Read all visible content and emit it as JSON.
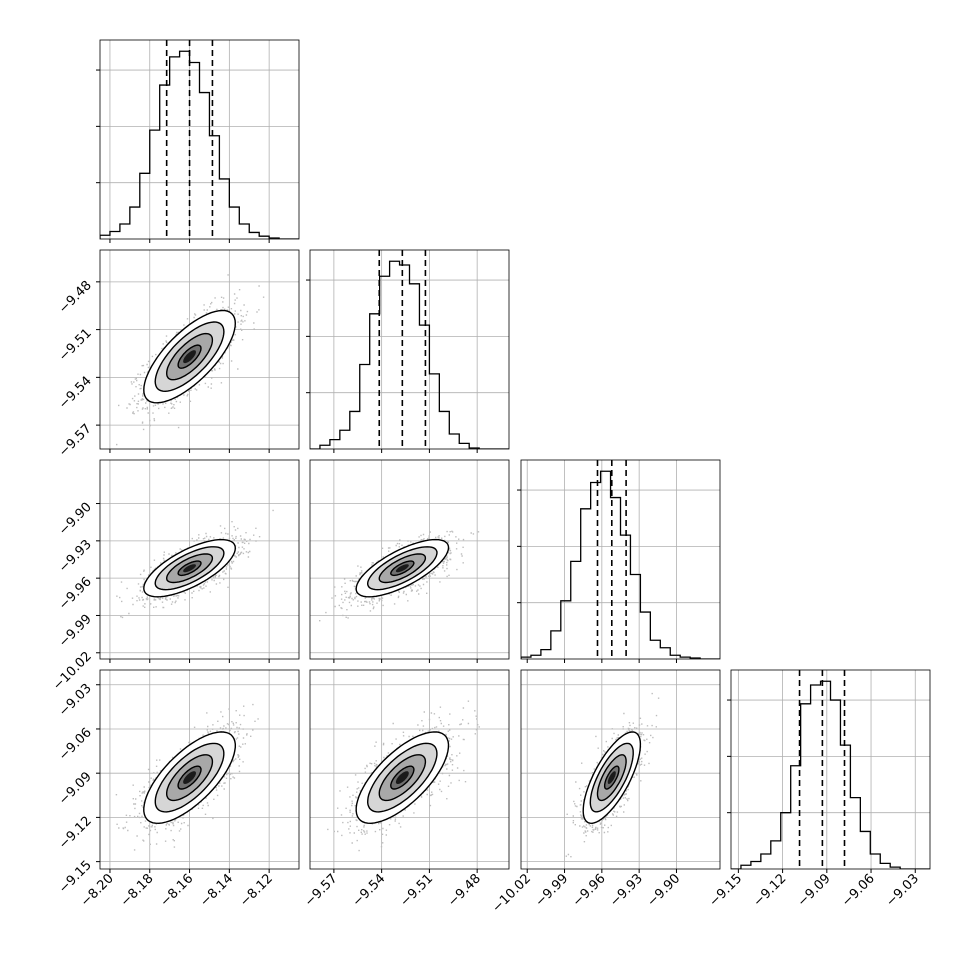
{
  "chart_data": {
    "type": "corner",
    "grid": true,
    "dims": [
      {
        "range": [
          -8.205,
          -8.105
        ],
        "ticks": [
          -8.2,
          -8.18,
          -8.16,
          -8.14,
          -8.12
        ],
        "tick_labels": [
          "−8.20",
          "−8.18",
          "−8.16",
          "−8.14",
          "−8.12"
        ],
        "quantiles": [
          -8.1715,
          -8.16,
          -8.1485
        ],
        "hist_values": [
          0.02,
          0.04,
          0.08,
          0.17,
          0.35,
          0.58,
          0.82,
          0.97,
          1.0,
          0.94,
          0.78,
          0.55,
          0.32,
          0.17,
          0.08,
          0.035,
          0.015,
          0.005,
          0.0,
          0.0
        ],
        "hist_yticks": [
          0.3,
          0.6,
          0.9
        ]
      },
      {
        "range": [
          -9.585,
          -9.46
        ],
        "ticks": [
          -9.57,
          -9.54,
          -9.51,
          -9.48
        ],
        "tick_labels": [
          "−9.57",
          "−9.54",
          "−9.51",
          "−9.48"
        ],
        "quantiles": [
          -9.5415,
          -9.527,
          -9.5125
        ],
        "hist_values": [
          0.0,
          0.02,
          0.05,
          0.1,
          0.2,
          0.45,
          0.72,
          0.92,
          1.0,
          0.98,
          0.88,
          0.66,
          0.4,
          0.2,
          0.08,
          0.03,
          0.005,
          0.0,
          0.0,
          0.0
        ],
        "hist_yticks": [
          0.3,
          0.6,
          0.9
        ]
      },
      {
        "range": [
          -10.025,
          -9.865
        ],
        "ticks": [
          -10.02,
          -9.99,
          -9.96,
          -9.93,
          -9.9
        ],
        "tick_labels": [
          "−10.02",
          "−9.99",
          "−9.96",
          "−9.93",
          "−9.90"
        ],
        "quantiles": [
          -9.9635,
          -9.952,
          -9.9405
        ],
        "hist_values": [
          0.01,
          0.02,
          0.05,
          0.15,
          0.31,
          0.52,
          0.8,
          0.94,
          1.0,
          0.86,
          0.66,
          0.45,
          0.25,
          0.1,
          0.06,
          0.02,
          0.01,
          0.005,
          0.0,
          0.0
        ],
        "hist_yticks": [
          0.3,
          0.6,
          0.9
        ]
      },
      {
        "range": [
          -9.155,
          -9.02
        ],
        "ticks": [
          -9.15,
          -9.12,
          -9.09,
          -9.06,
          -9.03
        ],
        "tick_labels": [
          "−9.15",
          "−9.12",
          "−9.09",
          "−9.06",
          "−9.03"
        ],
        "quantiles": [
          -9.1085,
          -9.093,
          -9.078
        ],
        "hist_values": [
          0.0,
          0.02,
          0.04,
          0.08,
          0.15,
          0.3,
          0.55,
          0.88,
          0.98,
          1.0,
          0.9,
          0.66,
          0.38,
          0.2,
          0.08,
          0.03,
          0.01,
          0.0,
          0.0,
          0.0
        ],
        "hist_yticks": [
          0.3,
          0.6,
          0.9
        ]
      }
    ],
    "pairs": [
      {
        "row": 1,
        "col": 0,
        "mean": [
          -8.16,
          -9.527
        ],
        "sd": [
          0.0115,
          0.0145
        ],
        "corr": 0.72
      },
      {
        "row": 2,
        "col": 0,
        "mean": [
          -8.16,
          -9.952
        ],
        "sd": [
          0.0115,
          0.0115
        ],
        "corr": 0.7
      },
      {
        "row": 2,
        "col": 1,
        "mean": [
          -9.527,
          -9.952
        ],
        "sd": [
          0.0145,
          0.0115
        ],
        "corr": 0.72
      },
      {
        "row": 3,
        "col": 0,
        "mean": [
          -8.16,
          -9.093
        ],
        "sd": [
          0.0115,
          0.0155
        ],
        "corr": 0.7
      },
      {
        "row": 3,
        "col": 1,
        "mean": [
          -9.527,
          -9.093
        ],
        "sd": [
          0.0145,
          0.0155
        ],
        "corr": 0.7
      },
      {
        "row": 3,
        "col": 2,
        "mean": [
          -9.952,
          -9.093
        ],
        "sd": [
          0.0115,
          0.0155
        ],
        "corr": 0.72
      }
    ],
    "contour_levels": [
      0.5,
      1.0,
      1.5,
      2.0
    ],
    "colors": {
      "line": "#000000",
      "scatter": "#bdbdbd",
      "grid": "#b0b0b0"
    }
  }
}
